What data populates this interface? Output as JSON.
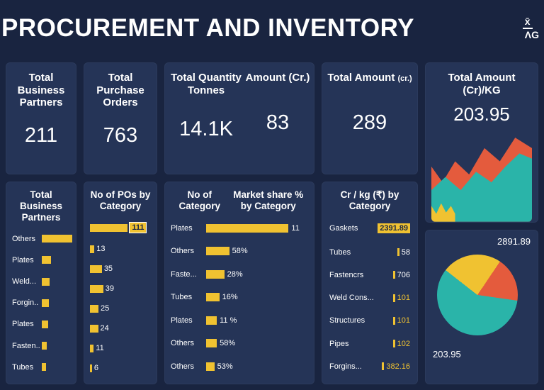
{
  "colors": {
    "background": "#192440",
    "card": "#253457",
    "accent_yellow": "#f0c231",
    "teal": "#2ab4a9",
    "orange": "#e45b3d",
    "text": "#ffffff",
    "dark_text": "#1b2743"
  },
  "header": {
    "title": "PROCUREMENT AND INVENTORY",
    "logo_line1": "x̄",
    "logo_line2": "ΛG"
  },
  "kpis": {
    "business_partners": {
      "title": "Total Business Partners",
      "value": "211"
    },
    "purchase_orders": {
      "title": "Total Purchase Orders",
      "value": "763"
    },
    "quantity_tonnes": {
      "title": "Total Quantity Tonnes",
      "value": "14.1K"
    },
    "amount_cr": {
      "title": "Amount (Cr.)",
      "value": "83"
    },
    "total_amount": {
      "title": "Total Amount",
      "suffix": "(cr.)",
      "value": "289"
    }
  },
  "chart_data": [
    {
      "name": "business-partners-by-category",
      "type": "bar",
      "title": "Total Business Partners",
      "max": 100,
      "bar_scale_pct": 52,
      "rows": [
        {
          "label": "Others",
          "bar": 100
        },
        {
          "label": "Plates",
          "bar": 30
        },
        {
          "label": "Weld...",
          "bar": 26
        },
        {
          "label": "Forgin..",
          "bar": 23
        },
        {
          "label": "Plates",
          "bar": 20
        },
        {
          "label": "Fasten..",
          "bar": 16
        },
        {
          "label": "Tubes",
          "bar": 13
        }
      ]
    },
    {
      "name": "pos-by-category",
      "type": "bar",
      "title": "No of POs by Category",
      "max": 111,
      "bar_scale_pct": 62,
      "rows": [
        {
          "value": "111",
          "bar": 111
        },
        {
          "value": "13",
          "bar": 13
        },
        {
          "value": "35",
          "bar": 35
        },
        {
          "value": "39",
          "bar": 39
        },
        {
          "value": "25",
          "bar": 25
        },
        {
          "value": "24",
          "bar": 24
        },
        {
          "value": "11",
          "bar": 11
        },
        {
          "value": "6",
          "bar": 6
        }
      ]
    },
    {
      "name": "category-count-and-market-share",
      "type": "bar",
      "title_left": "No of Category",
      "title_right": "Market share % by Category",
      "max": 100,
      "bar_scale_pct": 60,
      "rows": [
        {
          "label": "Plates",
          "display": "11",
          "bar": 100
        },
        {
          "label": "Others",
          "display": "58%",
          "bar": 28
        },
        {
          "label": "Faste...",
          "display": "28%",
          "bar": 22
        },
        {
          "label": "Tubes",
          "display": "16%",
          "bar": 16
        },
        {
          "label": "Plates",
          "display": "11 %",
          "bar": 13
        },
        {
          "label": "Others",
          "display": "58%",
          "bar": 13
        },
        {
          "label": "Others",
          "display": "53%",
          "bar": 10
        }
      ]
    },
    {
      "name": "cr-per-kg-by-category",
      "type": "table",
      "title": "Cr / kg (₹) by Category",
      "rows": [
        {
          "label": "Gaskets",
          "value": "2391.89"
        },
        {
          "label": "Tubes",
          "value": "58"
        },
        {
          "label": "Fastencrs",
          "value": "706"
        },
        {
          "label": "Weld Cons...",
          "value": "101"
        },
        {
          "label": "Structures",
          "value": "101"
        },
        {
          "label": "Pipes",
          "value": "102"
        },
        {
          "label": "Forgins...",
          "value": "382.16"
        }
      ]
    },
    {
      "name": "amount-pie",
      "type": "pie",
      "labels": [
        "2891.89",
        "203.95"
      ],
      "slices": [
        {
          "color": "#2ab4a9",
          "pct": 57
        },
        {
          "color": "#f0c231",
          "pct": 25
        },
        {
          "color": "#e45b3d",
          "pct": 18
        }
      ]
    },
    {
      "name": "total-amount-per-kg-trend",
      "type": "area",
      "title": "Total Amount (Cr)/KG",
      "value": "203.95",
      "series": [
        {
          "name": "orange",
          "values": [
            28,
            40,
            24,
            34,
            14,
            24,
            6,
            14
          ]
        },
        {
          "name": "teal",
          "values": [
            46,
            36,
            46,
            32,
            40,
            28,
            18,
            22
          ]
        }
      ]
    }
  ]
}
